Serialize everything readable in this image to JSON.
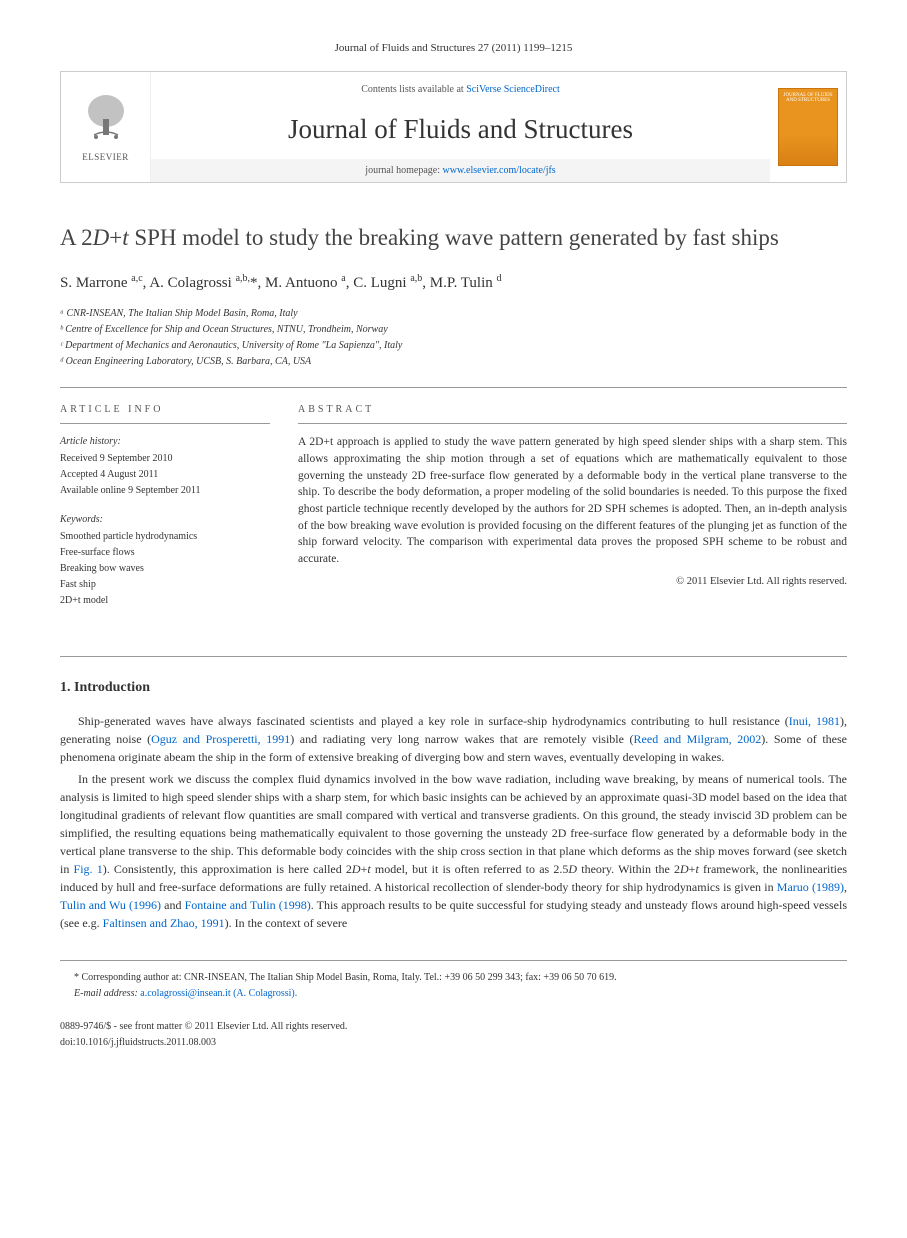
{
  "header": {
    "citation": "Journal of Fluids and Structures 27 (2011) 1199–1215",
    "contents_prefix": "Contents lists available at ",
    "contents_link": "SciVerse ScienceDirect",
    "journal_name": "Journal of Fluids and Structures",
    "homepage_prefix": "journal homepage: ",
    "homepage_url": "www.elsevier.com/locate/jfs",
    "elsevier_label": "ELSEVIER",
    "cover_text": "JOURNAL OF FLUIDS AND STRUCTURES"
  },
  "article": {
    "title_html": "A 2<em>D</em>+<em>t</em> SPH model to study the breaking wave pattern generated by fast ships",
    "authors_html": "S. Marrone <sup>a,c</sup>, A. Colagrossi <sup>a,b,</sup>*, M. Antuono <sup>a</sup>, C. Lugni <sup>a,b</sup>, M.P. Tulin <sup>d</sup>",
    "affiliations": [
      "ᵃ CNR-INSEAN, The Italian Ship Model Basin, Roma, Italy",
      "ᵇ Centre of Excellence for Ship and Ocean Structures, NTNU, Trondheim, Norway",
      "ᶜ Department of Mechanics and Aeronautics, University of Rome \"La Sapienza\", Italy",
      "ᵈ Ocean Engineering Laboratory, UCSB, S. Barbara, CA, USA"
    ]
  },
  "info": {
    "label": "ARTICLE INFO",
    "history_head": "Article history:",
    "history": [
      "Received 9 September 2010",
      "Accepted 4 August 2011",
      "Available online 9 September 2011"
    ],
    "keywords_head": "Keywords:",
    "keywords": [
      "Smoothed particle hydrodynamics",
      "Free-surface flows",
      "Breaking bow waves",
      "Fast ship",
      "2D+t model"
    ]
  },
  "abstract": {
    "label": "ABSTRACT",
    "text": "A 2D+t approach is applied to study the wave pattern generated by high speed slender ships with a sharp stem. This allows approximating the ship motion through a set of equations which are mathematically equivalent to those governing the unsteady 2D free-surface flow generated by a deformable body in the vertical plane transverse to the ship. To describe the body deformation, a proper modeling of the solid boundaries is needed. To this purpose the fixed ghost particle technique recently developed by the authors for 2D SPH schemes is adopted. Then, an in-depth analysis of the bow breaking wave evolution is provided focusing on the different features of the plunging jet as function of the ship forward velocity. The comparison with experimental data proves the proposed SPH scheme to be robust and accurate.",
    "copyright": "© 2011 Elsevier Ltd. All rights reserved."
  },
  "intro": {
    "heading": "1.  Introduction",
    "p1_html": "Ship-generated waves have always fascinated scientists and played a key role in surface-ship hydrodynamics contributing to hull resistance (<span class='link'>Inui, 1981</span>), generating noise (<span class='link'>Oguz and Prosperetti, 1991</span>) and radiating very long narrow wakes that are remotely visible (<span class='link'>Reed and Milgram, 2002</span>). Some of these phenomena originate abeam the ship in the form of extensive breaking of diverging bow and stern waves, eventually developing in wakes.",
    "p2_html": "In the present work we discuss the complex fluid dynamics involved in the bow wave radiation, including wave breaking, by means of numerical tools. The analysis is limited to high speed slender ships with a sharp stem, for which basic insights can be achieved by an approximate quasi-3D model based on the idea that longitudinal gradients of relevant flow quantities are small compared with vertical and transverse gradients. On this ground, the steady inviscid 3D problem can be simplified, the resulting equations being mathematically equivalent to those governing the unsteady 2D free-surface flow generated by a deformable body in the vertical plane transverse to the ship. This deformable body coincides with the ship cross section in that plane which deforms as the ship moves forward (see sketch in <span class='link'>Fig. 1</span>). Consistently, this approximation is here called 2<em>D</em>+<em>t</em> model, but it is often referred to as 2.5<em>D</em> theory. Within the 2<em>D</em>+<em>t</em> framework, the nonlinearities induced by hull and free-surface deformations are fully retained. A historical recollection of slender-body theory for ship hydrodynamics is given in <span class='link'>Maruo (1989)</span>, <span class='link'>Tulin and Wu (1996)</span> and <span class='link'>Fontaine and Tulin (1998)</span>. This approach results to be quite successful for studying steady and unsteady flows around high-speed vessels (see e.g. <span class='link'>Faltinsen and Zhao, 1991</span>). In the context of severe"
  },
  "footer": {
    "corr_html": "* Corresponding author at: CNR-INSEAN, The Italian Ship Model Basin, Roma, Italy. Tel.: +39 06 50 299 343; fax: +39 06 50 70 619.",
    "email_label": "E-mail address:",
    "email": "a.colagrossi@insean.it (A. Colagrossi).",
    "issn": "0889-9746/$ - see front matter © 2011 Elsevier Ltd. All rights reserved.",
    "doi": "doi:10.1016/j.jfluidstructs.2011.08.003"
  },
  "colors": {
    "link": "#0066cc",
    "border": "#999",
    "elsevier_orange": "#e8941f"
  }
}
